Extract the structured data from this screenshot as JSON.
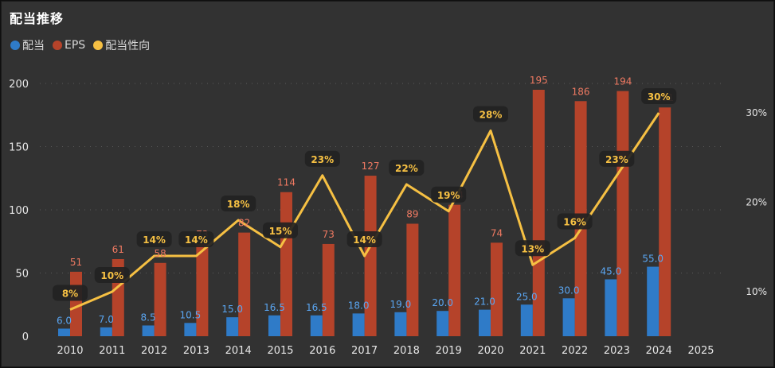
{
  "title": "配当推移",
  "legend": [
    {
      "label": "配当",
      "color": "#2f7bc8"
    },
    {
      "label": "EPS",
      "color": "#b5432a"
    },
    {
      "label": "配当性向",
      "color": "#f6c043"
    }
  ],
  "chart_data": {
    "type": "bar",
    "title": "配当推移",
    "categories": [
      "2010",
      "2011",
      "2012",
      "2013",
      "2014",
      "2015",
      "2016",
      "2017",
      "2018",
      "2019",
      "2020",
      "2021",
      "2022",
      "2023",
      "2024",
      "2025"
    ],
    "series": [
      {
        "name": "配当",
        "type": "bar",
        "color": "#2f7bc8",
        "values": [
          6.0,
          7.0,
          8.5,
          10.5,
          15.0,
          16.5,
          16.5,
          18.0,
          19.0,
          20.0,
          21.0,
          25.0,
          30.0,
          45.0,
          55.0,
          null
        ],
        "labels": [
          "6.0",
          "7.0",
          "8.5",
          "10.5",
          "15.0",
          "16.5",
          "16.5",
          "18.0",
          "19.0",
          "20.0",
          "21.0",
          "25.0",
          "30.0",
          "45.0",
          "55.0",
          ""
        ]
      },
      {
        "name": "EPS",
        "type": "bar",
        "color": "#b5432a",
        "values": [
          51,
          61,
          58,
          73,
          82,
          114,
          73,
          127,
          89,
          104,
          74,
          195,
          186,
          194,
          181,
          null
        ],
        "labels": [
          "51",
          "61",
          "58",
          "73",
          "82",
          "114",
          "73",
          "127",
          "89",
          "104",
          "74",
          "195",
          "186",
          "194",
          "181",
          ""
        ]
      },
      {
        "name": "配当性向",
        "type": "line",
        "color": "#f6c043",
        "axis": "right",
        "values": [
          8,
          10,
          14,
          14,
          18,
          15,
          23,
          14,
          22,
          19,
          28,
          13,
          16,
          23,
          30,
          null
        ],
        "labels": [
          "8%",
          "10%",
          "14%",
          "14%",
          "18%",
          "15%",
          "23%",
          "14%",
          "22%",
          "19%",
          "28%",
          "13%",
          "16%",
          "23%",
          "30%",
          ""
        ]
      }
    ],
    "y_left": {
      "ticks": [
        "0",
        "50",
        "100",
        "150",
        "200"
      ],
      "range": [
        0,
        200
      ]
    },
    "y_right": {
      "ticks": [
        "10%",
        "20%",
        "30%"
      ]
    },
    "grid": true,
    "legend_position": "top-left"
  }
}
